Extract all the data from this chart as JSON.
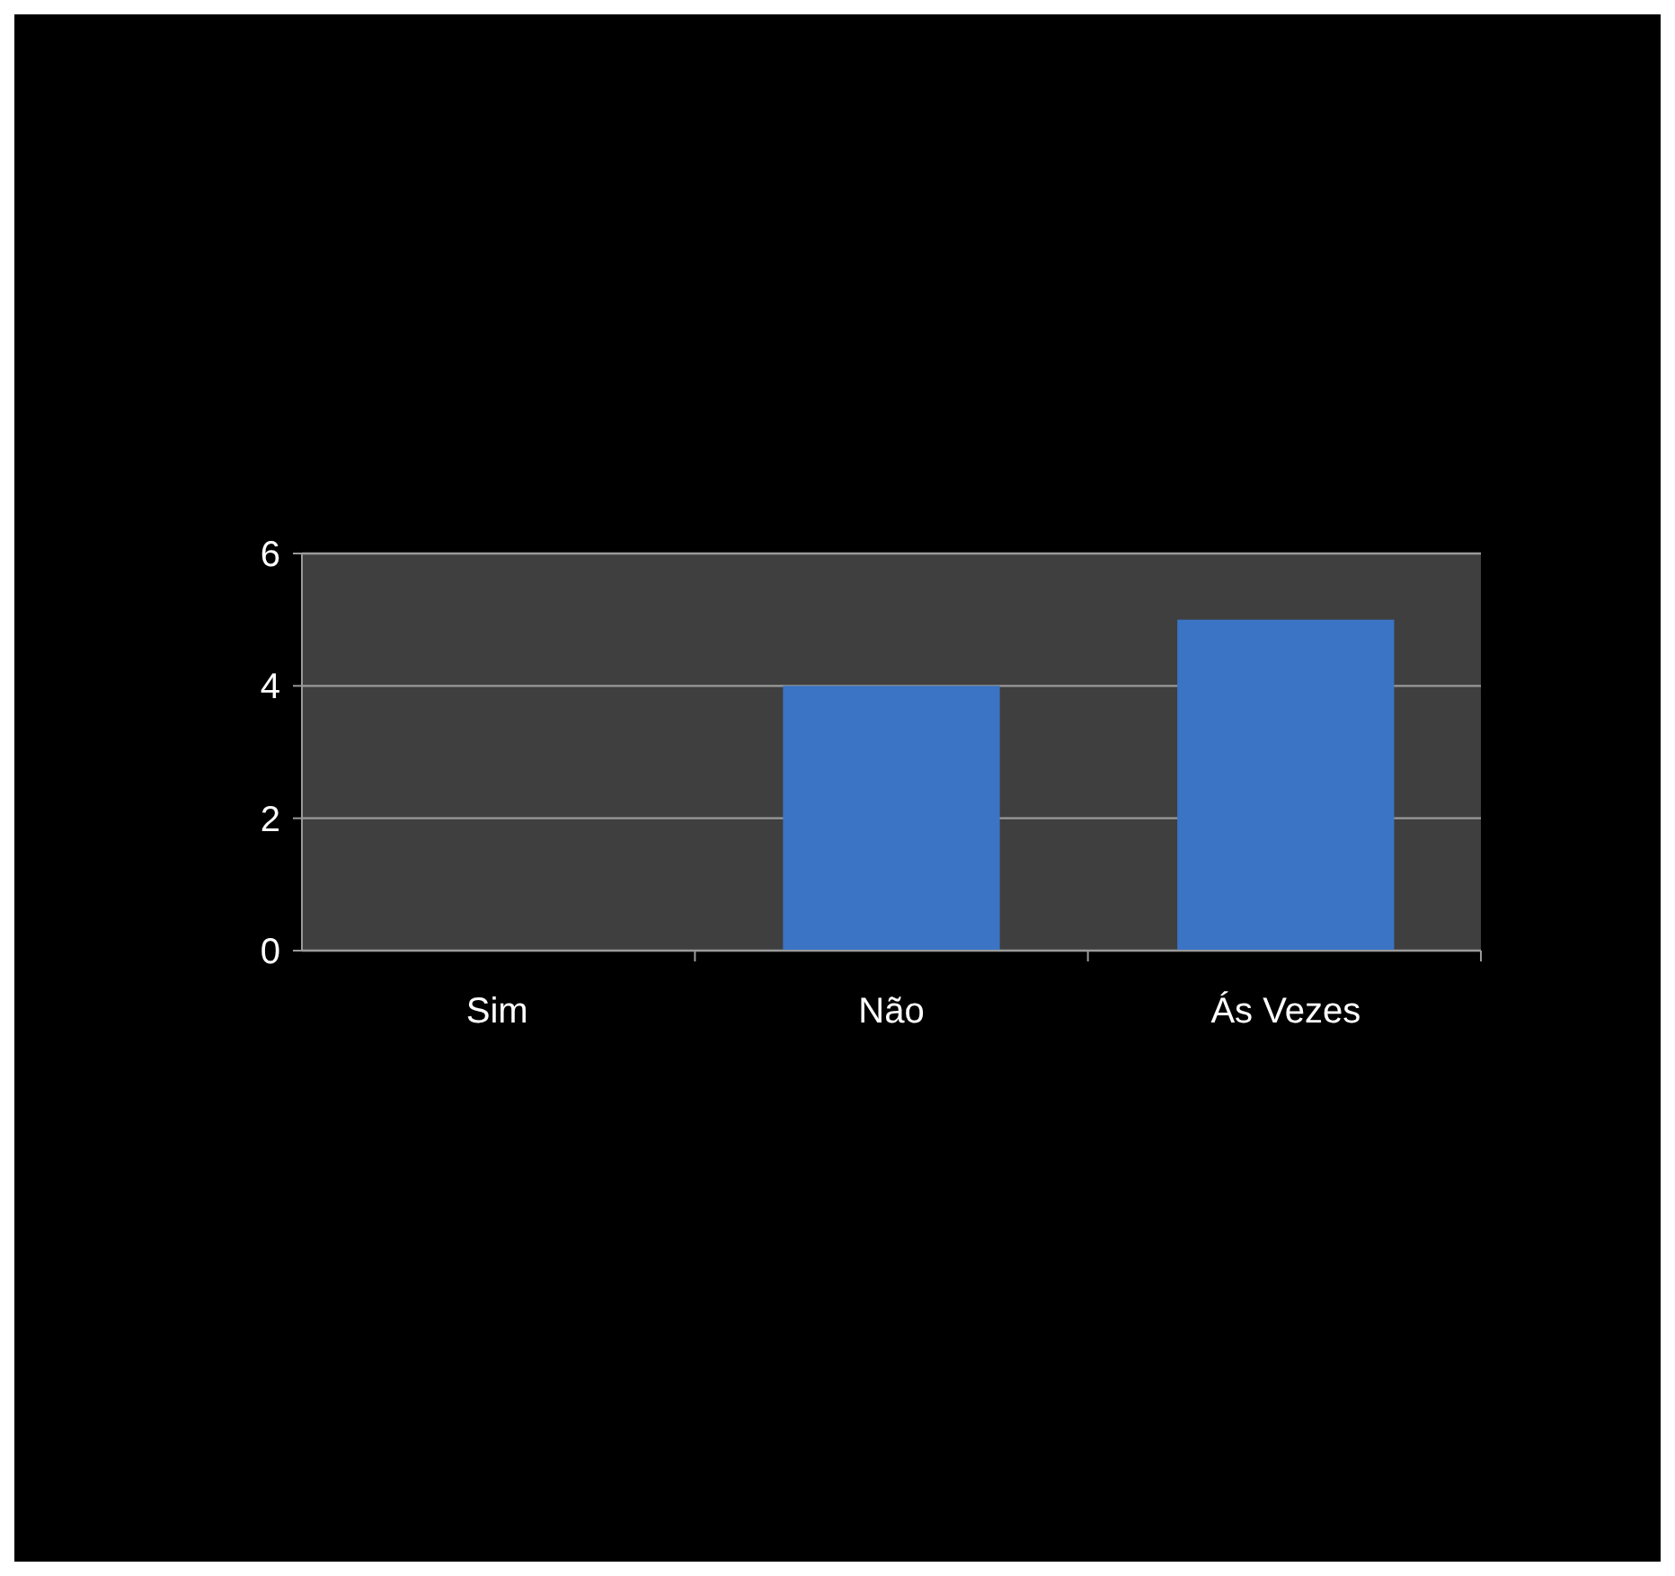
{
  "chart_data": {
    "type": "bar",
    "categories": [
      "Sim",
      "Não",
      "Ás Vezes"
    ],
    "values": [
      0,
      4,
      5
    ],
    "color": "#3b74c4",
    "ylim": [
      0,
      6
    ],
    "yticks": [
      0,
      2,
      4,
      6
    ],
    "grid": "y"
  }
}
